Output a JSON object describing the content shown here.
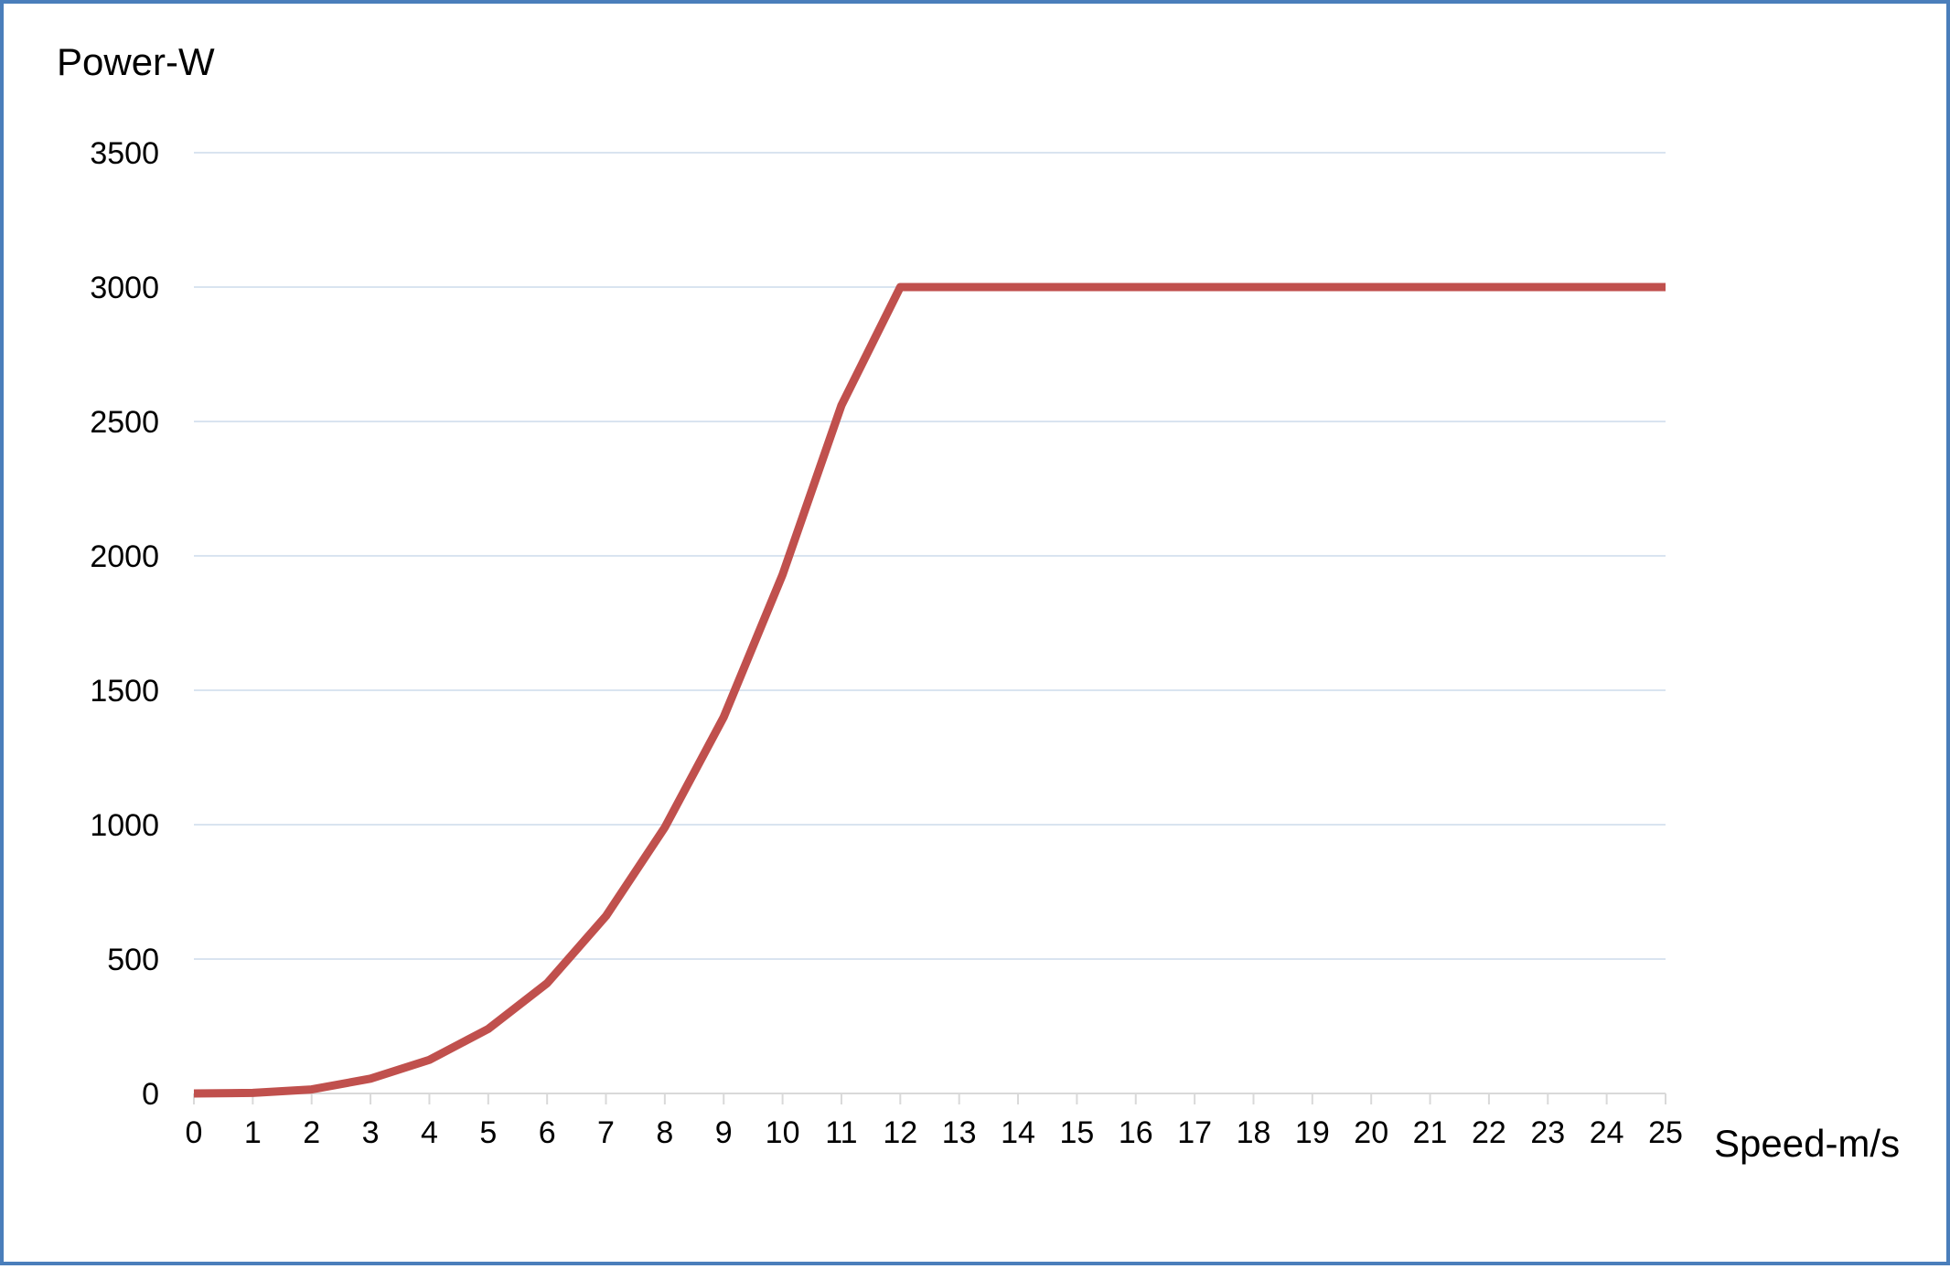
{
  "chart_data": {
    "type": "line",
    "ylabel": "Power-W",
    "xlabel": "Speed-m/s",
    "x": [
      0,
      1,
      2,
      3,
      4,
      5,
      6,
      7,
      8,
      9,
      10,
      11,
      12,
      13,
      14,
      15,
      16,
      17,
      18,
      19,
      20,
      21,
      22,
      23,
      24,
      25
    ],
    "series": [
      {
        "values": [
          0,
          2,
          15,
          55,
          125,
          240,
          410,
          660,
          990,
          1400,
          1930,
          2560,
          3000,
          3000,
          3000,
          3000,
          3000,
          3000,
          3000,
          3000,
          3000,
          3000,
          3000,
          3000,
          3000,
          3000
        ]
      }
    ],
    "xlim": [
      0,
      25
    ],
    "ylim": [
      0,
      3500
    ],
    "y_ticks": [
      0,
      500,
      1000,
      1500,
      2000,
      2500,
      3000,
      3500
    ],
    "x_ticks": [
      0,
      1,
      2,
      3,
      4,
      5,
      6,
      7,
      8,
      9,
      10,
      11,
      12,
      13,
      14,
      15,
      16,
      17,
      18,
      19,
      20,
      21,
      22,
      23,
      24,
      25
    ],
    "grid": true,
    "legend": "none",
    "colors": {
      "line": "#c0504d",
      "grid": "#d9e4f0",
      "axis": "#d9d9d9",
      "frame": "#4a7ebb"
    }
  }
}
